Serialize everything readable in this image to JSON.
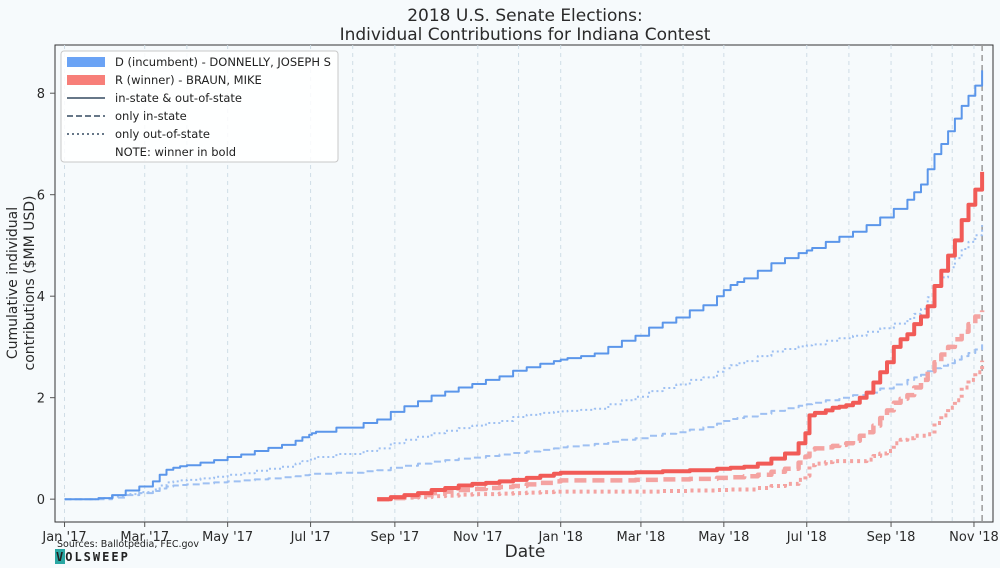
{
  "chart_data": {
    "type": "line",
    "title": [
      "2018 U.S. Senate Elections:",
      "Individual Contributions for Indiana Contest"
    ],
    "xlabel": "Date",
    "ylabel": [
      "Cumulative individual",
      "contributions ($MM USD)"
    ],
    "ylim": [
      -0.45,
      8.95
    ],
    "yticks": [
      0,
      2,
      4,
      6,
      8
    ],
    "xlim_days": [
      -7,
      683
    ],
    "xticks": [
      {
        "label": "Jan '17",
        "day": 0
      },
      {
        "label": "Mar '17",
        "day": 59
      },
      {
        "label": "May '17",
        "day": 120
      },
      {
        "label": "Jul '17",
        "day": 181
      },
      {
        "label": "Sep '17",
        "day": 243
      },
      {
        "label": "Nov '17",
        "day": 304
      },
      {
        "label": "Jan '18",
        "day": 365
      },
      {
        "label": "Mar '18",
        "day": 424
      },
      {
        "label": "May '18",
        "day": 485
      },
      {
        "label": "Jul '18",
        "day": 546
      },
      {
        "label": "Sep '18",
        "day": 608
      },
      {
        "label": "Nov '18",
        "day": 669
      }
    ],
    "minor_grid_days": [
      90,
      212,
      334,
      455,
      577,
      638,
      653
    ],
    "election_day": 675,
    "x_units": "days since Jan 1, 2017",
    "series": [
      {
        "name": "D (incumbent) - DONNELLY, JOSEPH S",
        "party": "D",
        "kind": "total",
        "x": [
          0,
          15,
          25,
          35,
          45,
          55,
          65,
          70,
          75,
          80,
          85,
          90,
          100,
          110,
          120,
          130,
          140,
          150,
          160,
          170,
          175,
          180,
          182,
          185,
          200,
          220,
          230,
          240,
          250,
          260,
          270,
          280,
          290,
          300,
          310,
          320,
          330,
          340,
          350,
          360,
          365,
          370,
          380,
          390,
          400,
          410,
          420,
          430,
          440,
          450,
          460,
          470,
          480,
          485,
          490,
          495,
          500,
          510,
          520,
          530,
          540,
          546,
          550,
          560,
          570,
          580,
          590,
          600,
          610,
          620,
          625,
          630,
          635,
          640,
          645,
          650,
          655,
          660,
          665,
          670,
          675
        ],
        "y": [
          0,
          0,
          0.02,
          0.08,
          0.17,
          0.25,
          0.35,
          0.48,
          0.58,
          0.62,
          0.65,
          0.67,
          0.72,
          0.77,
          0.83,
          0.88,
          0.95,
          1.01,
          1.07,
          1.15,
          1.22,
          1.27,
          1.3,
          1.33,
          1.41,
          1.5,
          1.57,
          1.72,
          1.83,
          1.93,
          2.04,
          2.12,
          2.2,
          2.27,
          2.35,
          2.42,
          2.53,
          2.6,
          2.67,
          2.72,
          2.75,
          2.78,
          2.82,
          2.87,
          3.0,
          3.12,
          3.22,
          3.38,
          3.48,
          3.58,
          3.72,
          3.82,
          4.0,
          4.12,
          4.22,
          4.28,
          4.35,
          4.5,
          4.65,
          4.75,
          4.85,
          4.9,
          4.95,
          5.07,
          5.17,
          5.27,
          5.4,
          5.55,
          5.72,
          5.9,
          6.05,
          6.2,
          6.5,
          6.8,
          7.0,
          7.25,
          7.5,
          7.75,
          7.95,
          8.15,
          8.45
        ]
      },
      {
        "name": "D in-state",
        "party": "D",
        "kind": "in-state",
        "x": [
          0,
          15,
          25,
          35,
          45,
          55,
          65,
          70,
          75,
          80,
          85,
          90,
          100,
          110,
          120,
          130,
          140,
          150,
          160,
          170,
          175,
          180,
          182,
          185,
          200,
          220,
          230,
          240,
          250,
          260,
          270,
          280,
          290,
          300,
          310,
          320,
          330,
          340,
          350,
          360,
          365,
          370,
          380,
          390,
          400,
          410,
          420,
          430,
          440,
          450,
          460,
          470,
          480,
          485,
          490,
          495,
          500,
          510,
          520,
          530,
          540,
          546,
          550,
          560,
          570,
          580,
          590,
          600,
          610,
          620,
          625,
          630,
          635,
          640,
          645,
          650,
          655,
          660,
          665,
          670,
          675
        ],
        "y": [
          0,
          0,
          0,
          0.03,
          0.08,
          0.12,
          0.16,
          0.21,
          0.25,
          0.27,
          0.28,
          0.29,
          0.31,
          0.33,
          0.35,
          0.37,
          0.39,
          0.41,
          0.43,
          0.45,
          0.47,
          0.48,
          0.5,
          0.5,
          0.52,
          0.55,
          0.57,
          0.62,
          0.66,
          0.7,
          0.74,
          0.77,
          0.8,
          0.82,
          0.85,
          0.88,
          0.91,
          0.94,
          0.97,
          1.0,
          1.02,
          1.04,
          1.06,
          1.09,
          1.13,
          1.17,
          1.2,
          1.25,
          1.29,
          1.32,
          1.37,
          1.42,
          1.49,
          1.54,
          1.58,
          1.6,
          1.63,
          1.68,
          1.74,
          1.79,
          1.84,
          1.87,
          1.9,
          1.95,
          2.0,
          2.05,
          2.1,
          2.18,
          2.26,
          2.35,
          2.4,
          2.45,
          2.52,
          2.58,
          2.63,
          2.68,
          2.75,
          2.82,
          2.88,
          2.95,
          3.05
        ]
      },
      {
        "name": "D out-of-state",
        "party": "D",
        "kind": "out-of-state",
        "x": [
          0,
          15,
          25,
          35,
          45,
          55,
          65,
          70,
          75,
          80,
          85,
          90,
          100,
          110,
          120,
          130,
          140,
          150,
          160,
          170,
          175,
          180,
          182,
          185,
          200,
          220,
          230,
          240,
          250,
          260,
          270,
          280,
          290,
          300,
          310,
          320,
          330,
          340,
          350,
          360,
          365,
          370,
          380,
          390,
          400,
          410,
          420,
          430,
          440,
          450,
          460,
          470,
          480,
          485,
          490,
          495,
          500,
          510,
          520,
          530,
          540,
          546,
          550,
          560,
          570,
          580,
          590,
          600,
          610,
          620,
          625,
          630,
          635,
          640,
          645,
          650,
          655,
          660,
          665,
          670,
          675
        ],
        "y": [
          0,
          0,
          0.02,
          0.05,
          0.1,
          0.14,
          0.19,
          0.27,
          0.33,
          0.35,
          0.37,
          0.38,
          0.41,
          0.44,
          0.48,
          0.51,
          0.56,
          0.6,
          0.64,
          0.7,
          0.75,
          0.78,
          0.8,
          0.83,
          0.89,
          0.95,
          1.0,
          1.1,
          1.17,
          1.23,
          1.3,
          1.35,
          1.4,
          1.45,
          1.5,
          1.54,
          1.62,
          1.66,
          1.7,
          1.72,
          1.73,
          1.74,
          1.76,
          1.78,
          1.87,
          1.95,
          2.02,
          2.13,
          2.19,
          2.26,
          2.35,
          2.4,
          2.51,
          2.58,
          2.64,
          2.68,
          2.72,
          2.82,
          2.91,
          2.96,
          3.01,
          3.03,
          3.05,
          3.12,
          3.17,
          3.22,
          3.3,
          3.37,
          3.46,
          3.55,
          3.65,
          3.75,
          3.98,
          4.22,
          4.37,
          4.57,
          4.75,
          4.93,
          5.07,
          5.2,
          5.4
        ]
      },
      {
        "name": "R (winner) - BRAUN, MIKE",
        "party": "R",
        "kind": "total",
        "x": [
          230,
          240,
          250,
          260,
          270,
          280,
          290,
          300,
          310,
          320,
          330,
          340,
          350,
          360,
          365,
          380,
          400,
          420,
          440,
          460,
          480,
          490,
          500,
          510,
          520,
          530,
          540,
          545,
          548,
          552,
          560,
          565,
          570,
          575,
          580,
          585,
          590,
          595,
          600,
          605,
          610,
          615,
          620,
          625,
          630,
          635,
          640,
          645,
          650,
          655,
          660,
          665,
          670,
          675
        ],
        "y": [
          0,
          0.04,
          0.08,
          0.12,
          0.18,
          0.22,
          0.27,
          0.3,
          0.32,
          0.35,
          0.38,
          0.42,
          0.46,
          0.5,
          0.52,
          0.52,
          0.52,
          0.53,
          0.55,
          0.57,
          0.6,
          0.62,
          0.64,
          0.7,
          0.8,
          0.9,
          1.1,
          1.3,
          1.65,
          1.7,
          1.75,
          1.8,
          1.82,
          1.85,
          1.9,
          2.0,
          2.1,
          2.3,
          2.5,
          2.7,
          3.0,
          3.15,
          3.25,
          3.45,
          3.6,
          3.8,
          4.2,
          4.5,
          4.8,
          5.1,
          5.5,
          5.8,
          6.1,
          6.45
        ]
      },
      {
        "name": "R in-state",
        "party": "R",
        "kind": "in-state",
        "x": [
          230,
          240,
          250,
          260,
          270,
          280,
          290,
          300,
          310,
          320,
          330,
          340,
          350,
          360,
          365,
          380,
          400,
          420,
          440,
          460,
          480,
          490,
          500,
          510,
          520,
          530,
          540,
          545,
          548,
          552,
          560,
          565,
          570,
          575,
          580,
          585,
          590,
          595,
          600,
          605,
          610,
          615,
          620,
          625,
          630,
          635,
          640,
          645,
          650,
          655,
          660,
          665,
          670,
          675
        ],
        "y": [
          0,
          0.02,
          0.05,
          0.08,
          0.12,
          0.15,
          0.18,
          0.2,
          0.22,
          0.24,
          0.26,
          0.29,
          0.32,
          0.35,
          0.37,
          0.37,
          0.37,
          0.38,
          0.39,
          0.4,
          0.42,
          0.43,
          0.45,
          0.48,
          0.54,
          0.6,
          0.72,
          0.84,
          0.98,
          1.0,
          1.02,
          1.05,
          1.07,
          1.1,
          1.15,
          1.25,
          1.32,
          1.45,
          1.6,
          1.75,
          1.9,
          1.98,
          2.05,
          2.2,
          2.35,
          2.52,
          2.7,
          2.85,
          3.0,
          3.15,
          3.3,
          3.45,
          3.6,
          3.72
        ]
      },
      {
        "name": "R out-of-state",
        "party": "R",
        "kind": "out-of-state",
        "x": [
          230,
          240,
          250,
          260,
          270,
          280,
          290,
          300,
          310,
          320,
          330,
          340,
          350,
          360,
          365,
          380,
          400,
          420,
          440,
          460,
          480,
          490,
          500,
          510,
          520,
          530,
          540,
          545,
          548,
          552,
          560,
          565,
          570,
          575,
          580,
          585,
          590,
          595,
          600,
          605,
          610,
          615,
          620,
          625,
          630,
          635,
          640,
          645,
          650,
          655,
          660,
          665,
          670,
          675
        ],
        "y": [
          0,
          0.02,
          0.03,
          0.04,
          0.06,
          0.07,
          0.09,
          0.1,
          0.1,
          0.11,
          0.12,
          0.13,
          0.14,
          0.15,
          0.15,
          0.15,
          0.15,
          0.15,
          0.16,
          0.17,
          0.18,
          0.19,
          0.19,
          0.22,
          0.26,
          0.3,
          0.38,
          0.46,
          0.67,
          0.7,
          0.73,
          0.75,
          0.75,
          0.75,
          0.75,
          0.75,
          0.78,
          0.85,
          0.9,
          0.95,
          1.1,
          1.17,
          1.2,
          1.25,
          1.25,
          1.28,
          1.5,
          1.65,
          1.8,
          1.95,
          2.2,
          2.35,
          2.5,
          2.73
        ]
      }
    ],
    "legend": {
      "position": "top-left",
      "entries": [
        {
          "label": "D (incumbent) - DONNELLY, JOSEPH S",
          "swatch": "patch-d"
        },
        {
          "label": "R (winner) - BRAUN, MIKE",
          "swatch": "patch-r"
        },
        {
          "label": "in-state & out-of-state",
          "swatch": "solid"
        },
        {
          "label": "only in-state",
          "swatch": "dashed"
        },
        {
          "label": "only out-of-state",
          "swatch": "dotted"
        },
        {
          "label": "NOTE: winner in bold",
          "swatch": "none"
        }
      ]
    },
    "source": "Sources: Ballotpedia, FEC.gov",
    "brand": "VOLSWEEP"
  },
  "colors": {
    "dem": "#5b96ea",
    "rep": "#f15b57",
    "rep_light": "#f4a3a1",
    "dem_light": "#9ec0f2",
    "dem_patch": "#6aa3f5",
    "rep_patch": "#f77f79",
    "grid": "#cfdde6",
    "axis": "#555555",
    "background": "#f6fafc",
    "election_line": "#9a9a9a",
    "brand_bg": "#2aa7a3"
  }
}
